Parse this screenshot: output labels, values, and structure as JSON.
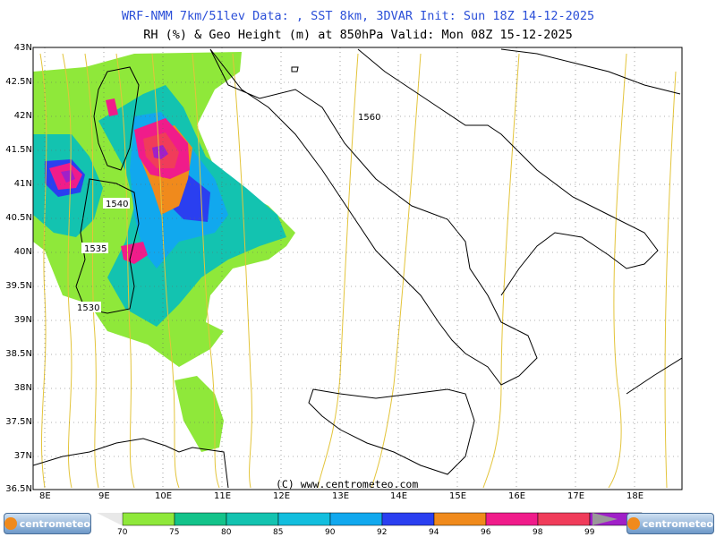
{
  "header": {
    "title_line1": "WRF-NMM 7km/51lev  Data: , SST 8km, 3DVAR  Init: Sun 18Z 14-12-2025",
    "title_line2": "RH (%) & Geo Height (m) at 850hPa  Valid: Mon 08Z 15-12-2025"
  },
  "axes": {
    "lat_labels": [
      "43N",
      "42.5N",
      "42N",
      "41.5N",
      "41N",
      "40.5N",
      "40N",
      "39.5N",
      "39N",
      "38.5N",
      "38N",
      "37.5N",
      "37N",
      "36.5N"
    ],
    "lon_labels": [
      "8E",
      "9E",
      "10E",
      "11E",
      "12E",
      "13E",
      "14E",
      "15E",
      "16E",
      "17E",
      "18E"
    ]
  },
  "contour_labels": [
    "1560",
    "1540",
    "1535",
    "1530"
  ],
  "copyright": "(C) www.centrometeo.com",
  "colorbar": {
    "labels": [
      "70",
      "75",
      "80",
      "85",
      "90",
      "92",
      "94",
      "96",
      "98",
      "99"
    ],
    "colors": [
      "#8fe83a",
      "#13c38a",
      "#13c3b0",
      "#12bede",
      "#11a8ee",
      "#2a3ff0",
      "#f08a1c",
      "#f01c8a",
      "#f03c5a",
      "#a020c8"
    ]
  },
  "logos": {
    "text": "centrometeo"
  }
}
